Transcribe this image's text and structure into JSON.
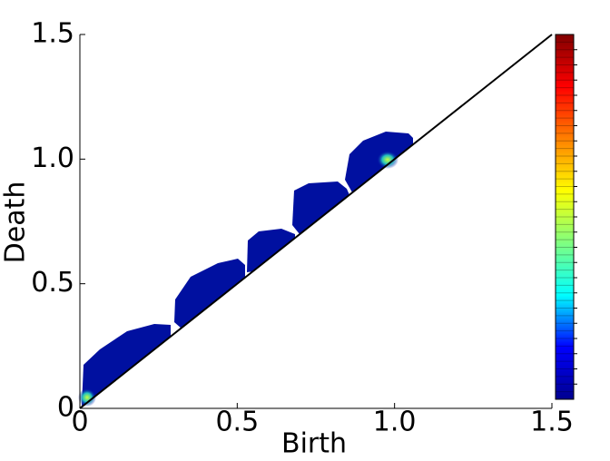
{
  "chart_data": {
    "type": "heatmap",
    "xlabel": "Birth",
    "ylabel": "Death",
    "xlim": [
      0,
      1.5
    ],
    "ylim": [
      0,
      1.5
    ],
    "xticks": [
      0,
      0.5,
      {
        "value": 1,
        "label": "1.0"
      },
      1.5
    ],
    "yticks": [
      0,
      0.5,
      {
        "value": 1,
        "label": "1.0"
      },
      1.5
    ],
    "colormap": [
      "#00008f",
      "#0000ff",
      "#00ffff",
      "#80ff80",
      "#ffff00",
      "#ff8000",
      "#ff0000",
      "#800000"
    ]
  }
}
